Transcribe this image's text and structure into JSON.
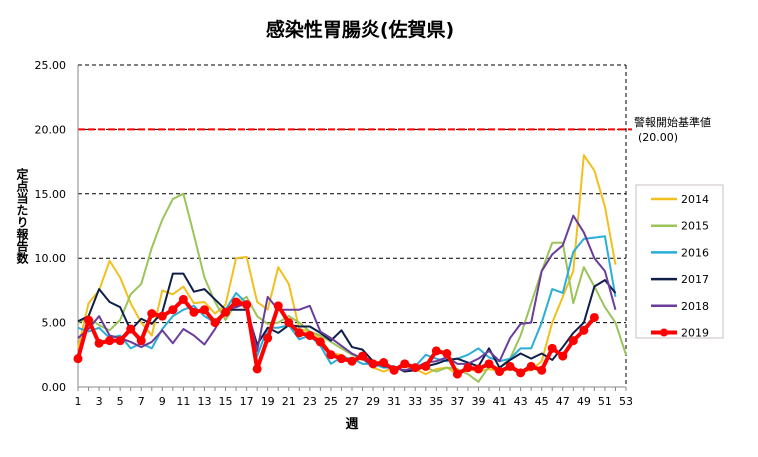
{
  "chart_data": {
    "type": "line",
    "title": "感染性胃腸炎(佐賀県)",
    "xlabel": "週",
    "ylabel": "定点当たり報告数",
    "ylim": [
      0,
      25
    ],
    "xlim": [
      1,
      53
    ],
    "yticks": [
      "0.00",
      "5.00",
      "10.00",
      "15.00",
      "20.00",
      "25.00"
    ],
    "xticks": [
      1,
      3,
      5,
      7,
      9,
      11,
      13,
      15,
      17,
      19,
      21,
      23,
      25,
      27,
      29,
      31,
      33,
      35,
      37,
      39,
      41,
      43,
      45,
      47,
      49,
      51,
      53
    ],
    "grid": "horizontal dashed",
    "legend_position": "right",
    "threshold": {
      "value": 20,
      "label": "警報開始基準値",
      "value_label": "(20.00)",
      "color": "#ff0000"
    },
    "series": [
      {
        "name": "2014",
        "color": "#f2c01e",
        "values": [
          3.0,
          6.5,
          7.5,
          9.8,
          8.5,
          6.5,
          5.0,
          4.0,
          7.5,
          7.2,
          7.8,
          6.5,
          6.6,
          5.7,
          6.4,
          10.0,
          10.1,
          6.6,
          6.0,
          9.3,
          8.0,
          4.5,
          4.3,
          3.8,
          2.6,
          2.5,
          2.0,
          2.2,
          1.5,
          1.2,
          1.5,
          1.6,
          1.4,
          1.0,
          1.4,
          1.5,
          1.0,
          1.4,
          1.2,
          1.4,
          1.2,
          1.4,
          1.2,
          1.3,
          2.0,
          5.0,
          7.0,
          9.0,
          18.0,
          16.8,
          14.0,
          9.5
        ]
      },
      {
        "name": "2015",
        "color": "#9bc45a",
        "values": [
          5.0,
          5.4,
          4.8,
          4.4,
          5.2,
          7.2,
          8.0,
          10.8,
          13.0,
          14.6,
          15.0,
          11.8,
          8.5,
          6.6,
          5.2,
          6.5,
          7.0,
          5.5,
          4.9,
          5.0,
          5.5,
          5.0,
          4.3,
          4.0,
          3.5,
          3.0,
          2.5,
          2.2,
          1.8,
          1.6,
          1.4,
          1.6,
          1.7,
          1.5,
          1.2,
          1.5,
          1.4,
          1.0,
          0.4,
          1.6,
          1.5,
          2.2,
          4.0,
          6.5,
          9.0,
          11.2,
          11.2,
          6.5,
          9.3,
          7.8,
          6.2,
          5.0,
          2.5
        ]
      },
      {
        "name": "2016",
        "color": "#2aaed8",
        "values": [
          4.6,
          4.3,
          4.6,
          3.8,
          4.0,
          3.0,
          3.4,
          3.0,
          4.5,
          5.5,
          6.0,
          6.3,
          5.5,
          5.0,
          6.0,
          7.3,
          6.5,
          2.4,
          4.6,
          4.6,
          4.8,
          3.7,
          4.0,
          3.2,
          1.8,
          2.3,
          2.2,
          1.8,
          1.8,
          1.5,
          1.5,
          1.6,
          1.6,
          2.5,
          2.2,
          2.0,
          2.2,
          2.5,
          3.0,
          2.3,
          2.0,
          2.2,
          3.0,
          3.0,
          5.0,
          7.6,
          7.3,
          10.5,
          11.5,
          11.6,
          11.7,
          7.0
        ]
      },
      {
        "name": "2017",
        "color": "#0f1f4a",
        "values": [
          5.1,
          5.5,
          7.6,
          6.6,
          6.2,
          4.4,
          5.3,
          4.9,
          5.8,
          8.8,
          8.8,
          7.4,
          7.6,
          6.8,
          6.0,
          6.0,
          6.0,
          3.3,
          4.6,
          4.2,
          4.8,
          4.7,
          4.7,
          4.2,
          3.6,
          4.4,
          3.1,
          2.9,
          2.0,
          1.6,
          1.6,
          1.2,
          1.3,
          1.6,
          1.8,
          2.1,
          2.2,
          1.9,
          1.6,
          3.0,
          1.5,
          2.1,
          2.6,
          2.2,
          2.6,
          2.1,
          3.1,
          4.2,
          5.0,
          7.8,
          8.3,
          7.3
        ]
      },
      {
        "name": "2018",
        "color": "#6a3d9a",
        "values": [
          3.8,
          4.5,
          5.5,
          4.0,
          3.8,
          3.5,
          3.1,
          3.5,
          4.4,
          3.4,
          4.5,
          4.0,
          3.3,
          4.5,
          6.0,
          6.2,
          6.5,
          2.8,
          7.0,
          6.0,
          6.0,
          6.0,
          6.3,
          4.3,
          3.8,
          3.2,
          2.6,
          2.2,
          1.6,
          1.8,
          1.5,
          1.3,
          1.5,
          1.9,
          2.0,
          2.3,
          1.8,
          1.8,
          2.2,
          2.8,
          2.0,
          3.8,
          4.9,
          5.0,
          9.0,
          10.3,
          11.0,
          13.3,
          12.0,
          10.0,
          9.0,
          6.0
        ]
      },
      {
        "name": "2019",
        "color": "#ff0000",
        "markers": true,
        "values": [
          2.2,
          5.2,
          3.4,
          3.6,
          3.6,
          4.5,
          3.6,
          5.7,
          5.5,
          6.0,
          6.8,
          5.8,
          6.0,
          5.0,
          5.8,
          6.6,
          6.4,
          1.4,
          3.8,
          6.3,
          5.0,
          4.2,
          4.0,
          3.5,
          2.5,
          2.2,
          2.0,
          2.4,
          1.8,
          1.9,
          1.3,
          1.8,
          1.5,
          1.6,
          2.8,
          2.6,
          1.0,
          1.5,
          1.4,
          1.8,
          1.2,
          1.6,
          1.1,
          1.6,
          1.3,
          3.0,
          2.4,
          3.6,
          4.4,
          5.4
        ]
      }
    ]
  }
}
